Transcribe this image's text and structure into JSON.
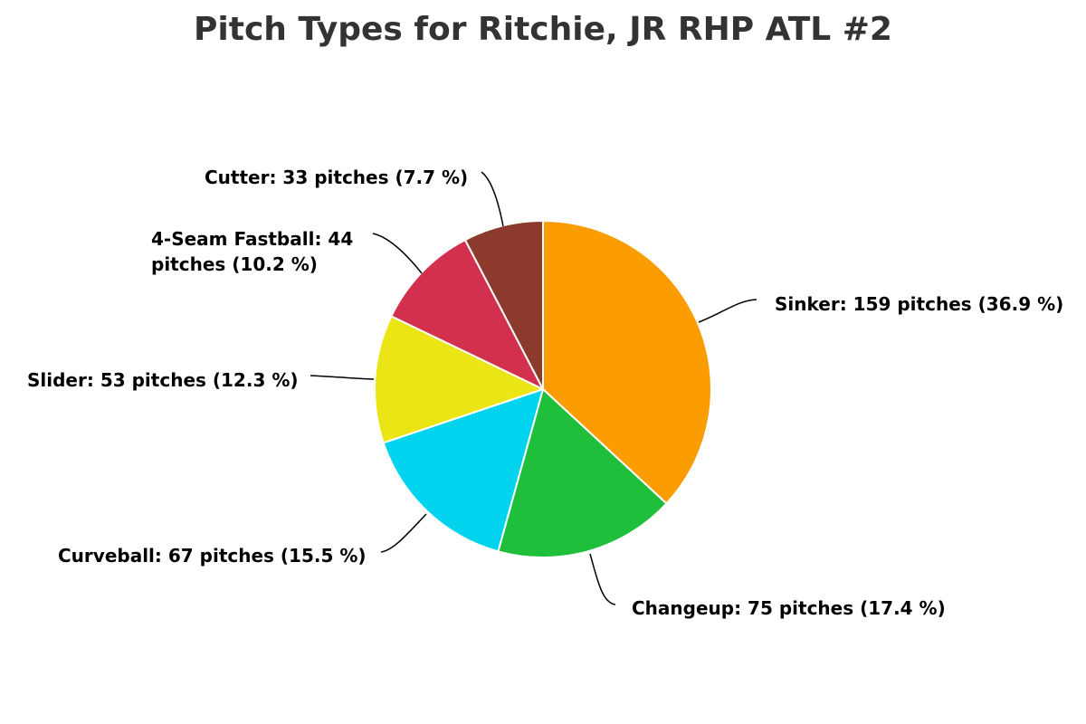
{
  "chart_data": {
    "type": "pie",
    "title": "Pitch Types for Ritchie, JR RHP ATL #2",
    "slices": [
      {
        "name": "Sinker",
        "count": 159,
        "percent": 36.9,
        "color": "#fb9d00",
        "label_lines": [
          "Sinker: 159 pitches (36.9 %)"
        ]
      },
      {
        "name": "Changeup",
        "count": 75,
        "percent": 17.4,
        "color": "#1fbe3b",
        "label_lines": [
          "Changeup: 75 pitches (17.4 %)"
        ]
      },
      {
        "name": "Curveball",
        "count": 67,
        "percent": 15.5,
        "color": "#00d3ee",
        "label_lines": [
          "Curveball: 67 pitches (15.5 %)"
        ]
      },
      {
        "name": "Slider",
        "count": 53,
        "percent": 12.3,
        "color": "#ebe516",
        "label_lines": [
          "Slider: 53 pitches (12.3 %)"
        ]
      },
      {
        "name": "4-Seam Fastball",
        "count": 44,
        "percent": 10.2,
        "color": "#d2304c",
        "label_lines": [
          "4-Seam Fastball: 44",
          "pitches (10.2 %)"
        ]
      },
      {
        "name": "Cutter",
        "count": 33,
        "percent": 7.7,
        "color": "#8b3a2b",
        "label_lines": [
          "Cutter: 33 pitches (7.7 %)"
        ]
      }
    ]
  }
}
